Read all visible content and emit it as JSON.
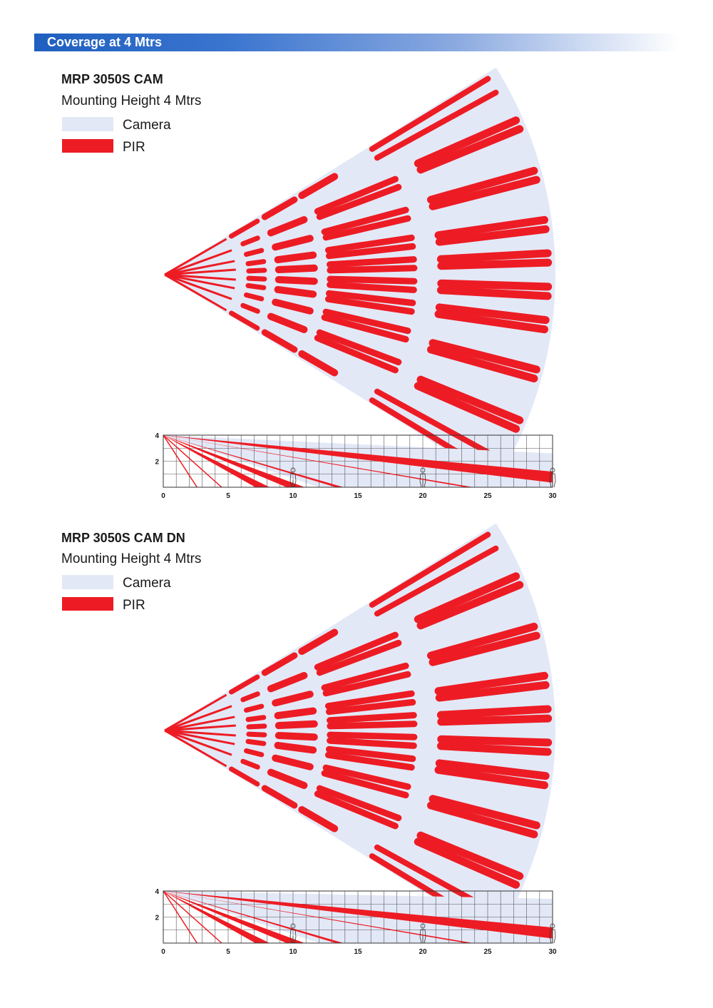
{
  "header": {
    "title": "Coverage at 4 Mtrs"
  },
  "colors": {
    "camera": "#e3e8f7",
    "pir": "#ed1c24",
    "header_blue": "#1f5fbf",
    "grid": "#555555"
  },
  "sections": [
    {
      "model": "MRP 3050S CAM",
      "mounting_height": "Mounting Height 4 Mtrs",
      "legend": [
        {
          "label": "Camera",
          "color": "#e3e8f7"
        },
        {
          "label": "PIR",
          "color": "#ed1c24"
        }
      ],
      "side_view": {
        "x_ticks": [
          "0",
          "5",
          "10",
          "15",
          "20",
          "25",
          "30"
        ],
        "y_ticks": [
          "4",
          "2"
        ],
        "x_max_m": 30,
        "y_max_m": 4,
        "camera_far_height_m": 2.6,
        "person_positions_m": [
          10,
          20,
          30
        ]
      }
    },
    {
      "model": "MRP 3050S CAM DN",
      "mounting_height": "Mounting Height 4 Mtrs",
      "legend": [
        {
          "label": "Camera",
          "color": "#e3e8f7"
        },
        {
          "label": "PIR",
          "color": "#ed1c24"
        }
      ],
      "side_view": {
        "x_ticks": [
          "0",
          "5",
          "10",
          "15",
          "20",
          "25",
          "30"
        ],
        "y_ticks": [
          "4",
          "2"
        ],
        "x_max_m": 30,
        "y_max_m": 4,
        "camera_far_height_m": 3.4,
        "person_positions_m": [
          10,
          20,
          30
        ]
      }
    }
  ]
}
